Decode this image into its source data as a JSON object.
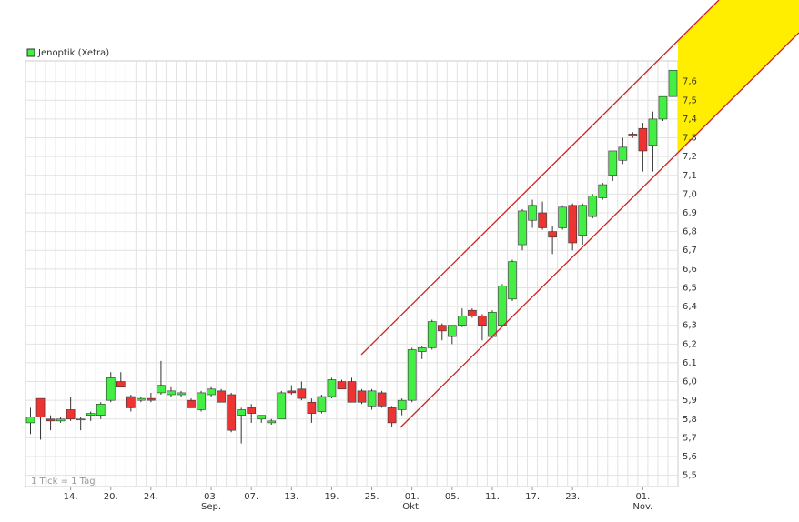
{
  "chart_data": {
    "type": "candlestick",
    "legend": "Jenoptik (Xetra)",
    "footnote": "1 Tick = 1 Tag",
    "up_color": "#44ee44",
    "down_color": "#ee3333",
    "grid": true,
    "categories": [
      null,
      null,
      null,
      null,
      "14.",
      null,
      null,
      null,
      "20.",
      null,
      null,
      null,
      "24.",
      null,
      null,
      null,
      null,
      null,
      "03.",
      null,
      null,
      null,
      "07.",
      null,
      null,
      null,
      "13.",
      null,
      null,
      null,
      "19.",
      null,
      null,
      null,
      "25.",
      null,
      null,
      null,
      "01.",
      null,
      null,
      null,
      "05.",
      null,
      null,
      null,
      "11.",
      null,
      null,
      null,
      "17.",
      null,
      null,
      null,
      "23.",
      null,
      null,
      null,
      null,
      null,
      null,
      "01.",
      null,
      null,
      null
    ],
    "month_labels": [
      null,
      null,
      null,
      null,
      null,
      null,
      null,
      null,
      null,
      null,
      null,
      null,
      null,
      null,
      null,
      null,
      null,
      null,
      "Sep.",
      null,
      null,
      null,
      null,
      null,
      null,
      null,
      null,
      null,
      null,
      null,
      null,
      null,
      null,
      null,
      null,
      null,
      null,
      null,
      "Okt.",
      null,
      null,
      null,
      null,
      null,
      null,
      null,
      null,
      null,
      null,
      null,
      null,
      null,
      null,
      null,
      null,
      null,
      null,
      null,
      null,
      null,
      null,
      "Nov.",
      null,
      null,
      null
    ],
    "open": [
      5.78,
      5.91,
      5.8,
      5.79,
      5.85,
      5.8,
      5.82,
      5.82,
      5.9,
      6.0,
      5.92,
      5.9,
      5.91,
      5.94,
      5.93,
      5.93,
      5.9,
      5.85,
      5.93,
      5.95,
      5.93,
      5.82,
      5.86,
      5.8,
      5.78,
      5.8,
      5.95,
      5.96,
      5.89,
      5.84,
      5.92,
      6.0,
      6.0,
      5.95,
      5.87,
      5.94,
      5.86,
      5.85,
      5.9,
      6.16,
      6.18,
      6.3,
      6.24,
      6.3,
      6.38,
      6.35,
      6.24,
      6.3,
      6.44,
      6.73,
      6.86,
      6.9,
      6.8,
      6.82,
      6.94,
      6.78,
      6.88,
      6.98,
      7.1,
      7.18,
      7.32,
      7.35,
      7.26,
      7.4,
      7.52
    ],
    "high": [
      5.86,
      5.91,
      5.82,
      5.81,
      5.92,
      5.81,
      5.84,
      5.89,
      6.05,
      6.05,
      5.93,
      5.92,
      5.94,
      6.11,
      5.97,
      5.95,
      5.91,
      5.95,
      5.97,
      5.96,
      5.94,
      5.86,
      5.88,
      5.82,
      5.8,
      5.95,
      5.98,
      6.0,
      5.91,
      5.93,
      6.02,
      6.01,
      6.02,
      5.96,
      5.96,
      5.95,
      5.87,
      5.91,
      6.18,
      6.19,
      6.33,
      6.31,
      6.3,
      6.39,
      6.39,
      6.36,
      6.38,
      6.52,
      6.65,
      6.92,
      6.97,
      6.96,
      6.83,
      6.94,
      6.95,
      6.95,
      7.0,
      7.06,
      7.23,
      7.3,
      7.33,
      7.38,
      7.44,
      7.52,
      7.66
    ],
    "low": [
      5.72,
      5.69,
      5.74,
      5.78,
      5.79,
      5.74,
      5.79,
      5.8,
      5.89,
      5.97,
      5.84,
      5.89,
      5.89,
      5.93,
      5.92,
      5.92,
      5.86,
      5.84,
      5.92,
      5.89,
      5.73,
      5.67,
      5.78,
      5.78,
      5.77,
      5.8,
      5.93,
      5.9,
      5.78,
      5.83,
      5.91,
      5.96,
      5.89,
      5.88,
      5.85,
      5.86,
      5.76,
      5.82,
      5.89,
      6.12,
      6.17,
      6.22,
      6.2,
      6.29,
      6.34,
      6.22,
      6.23,
      6.29,
      6.43,
      6.7,
      6.82,
      6.81,
      6.68,
      6.81,
      6.7,
      6.73,
      6.87,
      6.97,
      7.07,
      7.16,
      7.3,
      7.12,
      7.12,
      7.39,
      7.46
    ],
    "close": [
      5.81,
      5.81,
      5.79,
      5.8,
      5.8,
      5.8,
      5.83,
      5.88,
      6.02,
      5.97,
      5.86,
      5.91,
      5.9,
      5.98,
      5.95,
      5.94,
      5.86,
      5.94,
      5.96,
      5.89,
      5.74,
      5.85,
      5.83,
      5.82,
      5.79,
      5.94,
      5.94,
      5.91,
      5.83,
      5.92,
      6.01,
      5.96,
      5.89,
      5.89,
      5.95,
      5.87,
      5.78,
      5.9,
      6.17,
      6.18,
      6.32,
      6.27,
      6.3,
      6.35,
      6.35,
      6.3,
      6.37,
      6.51,
      6.64,
      6.91,
      6.94,
      6.82,
      6.77,
      6.93,
      6.74,
      6.94,
      6.99,
      7.05,
      7.23,
      7.25,
      7.31,
      7.23,
      7.4,
      7.52,
      7.66
    ],
    "ylim": [
      5.44,
      7.71
    ],
    "yticks": [
      {
        "value": 5.5,
        "label": "5,5"
      },
      {
        "value": 5.6,
        "label": "5,6"
      },
      {
        "value": 5.7,
        "label": "5,7"
      },
      {
        "value": 5.8,
        "label": "5,8"
      },
      {
        "value": 5.9,
        "label": "5,9"
      },
      {
        "value": 6.0,
        "label": "6,0"
      },
      {
        "value": 6.1,
        "label": "6,1"
      },
      {
        "value": 6.2,
        "label": "6,2"
      },
      {
        "value": 6.3,
        "label": "6,3"
      },
      {
        "value": 6.4,
        "label": "6,4"
      },
      {
        "value": 6.5,
        "label": "6,5"
      },
      {
        "value": 6.6,
        "label": "6,6"
      },
      {
        "value": 6.7,
        "label": "6,7"
      },
      {
        "value": 6.8,
        "label": "6,8"
      },
      {
        "value": 6.9,
        "label": "6,9"
      },
      {
        "value": 7.0,
        "label": "7,0"
      },
      {
        "value": 7.1,
        "label": "7,1"
      },
      {
        "value": 7.2,
        "label": "7,2"
      },
      {
        "value": 7.3,
        "label": "7,3"
      },
      {
        "value": 7.4,
        "label": "7,4"
      },
      {
        "value": 7.5,
        "label": "7,5"
      },
      {
        "value": 7.6,
        "label": "7,6"
      }
    ]
  }
}
